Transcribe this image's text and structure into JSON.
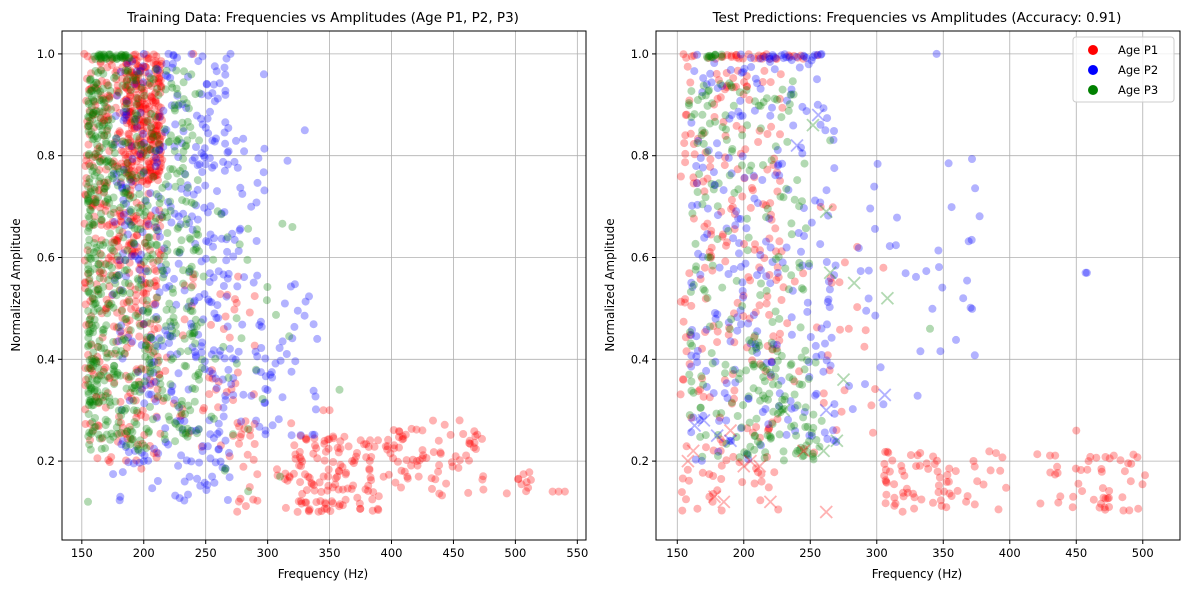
{
  "colors": {
    "P1": "#ff0000",
    "P2": "#0000ff",
    "P3": "#008000"
  },
  "chart_data": [
    {
      "type": "scatter",
      "title": "Training Data: Frequencies vs Amplitudes (Age P1, P2, P3)",
      "xlabel": "Frequency (Hz)",
      "ylabel": "Normalized Amplitude",
      "xlim": [
        134,
        557
      ],
      "ylim": [
        0.045,
        1.045
      ],
      "xticks": [
        150,
        200,
        250,
        300,
        350,
        400,
        450,
        500,
        550
      ],
      "yticks": [
        0.2,
        0.4,
        0.6,
        0.8,
        1.0
      ],
      "grid": true,
      "legend": null,
      "series": [
        {
          "color_key": "P1",
          "marker": "o",
          "alpha": 0.3,
          "clusters": [
            {
              "xr": [
                152,
                215
              ],
              "yr": [
                0.18,
                1.0
              ],
              "n": 500,
              "yskew": 0.7
            },
            {
              "xr": [
                185,
                215
              ],
              "yr": [
                0.75,
                1.0
              ],
              "n": 200
            },
            {
              "xr": [
                210,
                290
              ],
              "yr": [
                0.2,
                0.6
              ],
              "n": 50
            },
            {
              "xr": [
                270,
                320
              ],
              "yr": [
                0.1,
                0.3
              ],
              "n": 30
            },
            {
              "xr": [
                320,
                360
              ],
              "yr": [
                0.1,
                0.25
              ],
              "n": 80
            },
            {
              "xr": [
                360,
                400
              ],
              "yr": [
                0.1,
                0.25
              ],
              "n": 50
            },
            {
              "xr": [
                400,
                475
              ],
              "yr": [
                0.13,
                0.28
              ],
              "n": 70
            },
            {
              "xr": [
                493,
                515
              ],
              "yr": [
                0.13,
                0.18
              ],
              "n": 10
            }
          ],
          "points": [
            [
              152,
              1.0
            ],
            [
              240,
              1.0
            ],
            [
              530,
              0.14
            ],
            [
              535,
              0.14
            ],
            [
              540,
              0.14
            ],
            [
              345,
              0.3
            ],
            [
              350,
              0.3
            ],
            [
              455,
              0.28
            ]
          ]
        },
        {
          "color_key": "P2",
          "marker": "o",
          "alpha": 0.3,
          "clusters": [
            {
              "xr": [
                175,
                270
              ],
              "yr": [
                0.12,
                1.0
              ],
              "n": 350
            },
            {
              "xr": [
                240,
                300
              ],
              "yr": [
                0.25,
                0.85
              ],
              "n": 70
            },
            {
              "xr": [
                290,
                340
              ],
              "yr": [
                0.25,
                0.55
              ],
              "n": 40
            }
          ],
          "points": [
            [
              297,
              0.96
            ],
            [
              330,
              0.85
            ],
            [
              316,
              0.79
            ],
            [
              340,
              0.44
            ],
            [
              270,
              1.0
            ],
            [
              220,
              1.0
            ],
            [
              200,
              1.0
            ]
          ]
        },
        {
          "color_key": "P3",
          "marker": "o",
          "alpha": 0.3,
          "clusters": [
            {
              "xr": [
                155,
                245
              ],
              "yr": [
                0.22,
                0.97
              ],
              "n": 700,
              "xskew": 0.6
            },
            {
              "xr": [
                160,
                190
              ],
              "yr": [
                0.99,
                1.0
              ],
              "n": 40
            },
            {
              "xr": [
                240,
                320
              ],
              "yr": [
                0.12,
                0.7
              ],
              "n": 35
            }
          ],
          "points": [
            [
              155,
              0.12
            ],
            [
              358,
              0.34
            ],
            [
              320,
              0.66
            ]
          ]
        }
      ]
    },
    {
      "type": "scatter",
      "title": "Test Predictions: Frequencies vs Amplitudes (Accuracy: 0.91)",
      "xlabel": "Frequency (Hz)",
      "ylabel": "Normalized Amplitude",
      "xlim": [
        134,
        528
      ],
      "ylim": [
        0.045,
        1.045
      ],
      "xticks": [
        150,
        200,
        250,
        300,
        350,
        400,
        450,
        500
      ],
      "yticks": [
        0.2,
        0.4,
        0.6,
        0.8,
        1.0
      ],
      "grid": true,
      "legend": {
        "position": "top-right",
        "entries": [
          "Age P1",
          "Age P2",
          "Age P3"
        ]
      },
      "series": [
        {
          "name": "Age P1",
          "color_key": "P1",
          "marker": "o",
          "alpha": 0.3,
          "clusters": [
            {
              "xr": [
                152,
                230
              ],
              "yr": [
                0.1,
                1.0
              ],
              "n": 230
            },
            {
              "xr": [
                155,
                260
              ],
              "yr": [
                0.99,
                1.0
              ],
              "n": 30
            },
            {
              "xr": [
                230,
                300
              ],
              "yr": [
                0.2,
                0.7
              ],
              "n": 30
            },
            {
              "xr": [
                305,
                360
              ],
              "yr": [
                0.1,
                0.22
              ],
              "n": 55
            },
            {
              "xr": [
                360,
                400
              ],
              "yr": [
                0.1,
                0.22
              ],
              "n": 15
            },
            {
              "xr": [
                420,
                505
              ],
              "yr": [
                0.1,
                0.22
              ],
              "n": 50
            }
          ],
          "points": [
            [
              450,
              0.26
            ],
            [
              305,
              0.58
            ]
          ]
        },
        {
          "name": "Age P2",
          "color_key": "P2",
          "marker": "o",
          "alpha": 0.3,
          "clusters": [
            {
              "xr": [
                160,
                270
              ],
              "yr": [
                0.2,
                1.0
              ],
              "n": 240
            },
            {
              "xr": [
                270,
                380
              ],
              "yr": [
                0.3,
                0.8
              ],
              "n": 40
            },
            {
              "xr": [
                200,
                260
              ],
              "yr": [
                0.99,
                1.0
              ],
              "n": 20
            }
          ],
          "points": [
            [
              345,
              1.0
            ],
            [
              458,
              0.57
            ],
            [
              457,
              0.57
            ],
            [
              365,
              0.52
            ]
          ]
        },
        {
          "name": "Age P3",
          "color_key": "P3",
          "marker": "o",
          "alpha": 0.3,
          "clusters": [
            {
              "xr": [
                158,
                250
              ],
              "yr": [
                0.2,
                0.95
              ],
              "n": 200
            },
            {
              "xr": [
                190,
                260
              ],
              "yr": [
                0.2,
                0.4
              ],
              "n": 60
            },
            {
              "xr": [
                170,
                185
              ],
              "yr": [
                0.99,
                1.0
              ],
              "n": 12
            }
          ],
          "points": [
            [
              340,
              0.46
            ],
            [
              265,
              0.83
            ]
          ]
        }
      ],
      "misclassified": [
        {
          "color_key": "P1",
          "points": [
            [
              158,
              0.2
            ],
            [
              162,
              0.22
            ],
            [
              178,
              0.13
            ],
            [
              185,
              0.12
            ],
            [
              200,
              0.19
            ],
            [
              205,
              0.2
            ],
            [
              212,
              0.19
            ],
            [
              220,
              0.12
            ],
            [
              262,
              0.1
            ],
            [
              245,
              0.22
            ],
            [
              190,
              0.26
            ]
          ]
        },
        {
          "color_key": "P2",
          "points": [
            [
              163,
              0.27
            ],
            [
              170,
              0.28
            ],
            [
              180,
              0.25
            ],
            [
              190,
              0.24
            ],
            [
              240,
              0.82
            ],
            [
              256,
              0.88
            ],
            [
              306,
              0.33
            ],
            [
              262,
              0.3
            ]
          ]
        },
        {
          "color_key": "P3",
          "points": [
            [
              252,
              0.86
            ],
            [
              262,
              0.69
            ],
            [
              265,
              0.57
            ],
            [
              283,
              0.55
            ],
            [
              308,
              0.52
            ],
            [
              270,
              0.24
            ],
            [
              260,
              0.22
            ],
            [
              275,
              0.36
            ],
            [
              230,
              0.3
            ]
          ]
        }
      ]
    }
  ]
}
